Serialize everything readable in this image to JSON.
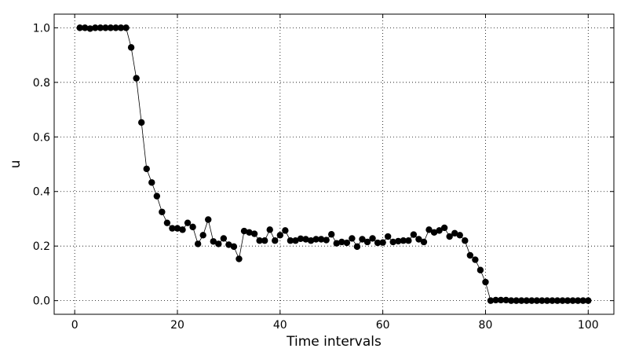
{
  "chart_data": {
    "type": "line",
    "title": "",
    "xlabel": "Time intervals",
    "ylabel": "u",
    "xlim": [
      -4,
      105
    ],
    "ylim": [
      -0.05,
      1.05
    ],
    "xticks": [
      0,
      20,
      40,
      60,
      80,
      100
    ],
    "yticks": [
      0.0,
      0.2,
      0.4,
      0.6,
      0.8,
      1.0
    ],
    "xtick_labels": [
      "0",
      "20",
      "40",
      "60",
      "80",
      "100"
    ],
    "ytick_labels": [
      "0.0",
      "0.2",
      "0.4",
      "0.6",
      "0.8",
      "1.0"
    ],
    "grid": true,
    "legend": "none",
    "series": [
      {
        "color": "#000000",
        "marker": "circle",
        "x": [
          1,
          2,
          3,
          4,
          5,
          6,
          7,
          8,
          9,
          10,
          11,
          12,
          13,
          14,
          15,
          16,
          17,
          18,
          19,
          20,
          21,
          22,
          23,
          24,
          25,
          26,
          27,
          28,
          29,
          30,
          31,
          32,
          33,
          34,
          35,
          36,
          37,
          38,
          39,
          40,
          41,
          42,
          43,
          44,
          45,
          46,
          47,
          48,
          49,
          50,
          51,
          52,
          53,
          54,
          55,
          56,
          57,
          58,
          59,
          60,
          61,
          62,
          63,
          64,
          65,
          66,
          67,
          68,
          69,
          70,
          71,
          72,
          73,
          74,
          75,
          76,
          77,
          78,
          79,
          80,
          81,
          82,
          83,
          84,
          85,
          86,
          87,
          88,
          89,
          90,
          91,
          92,
          93,
          94,
          95,
          96,
          97,
          98,
          99,
          100
        ],
        "y": [
          1.0,
          1.0,
          0.997,
          1.0,
          1.0,
          1.0,
          1.0,
          1.0,
          1.0,
          1.0,
          0.928,
          0.815,
          0.653,
          0.483,
          0.433,
          0.383,
          0.325,
          0.285,
          0.265,
          0.265,
          0.26,
          0.285,
          0.27,
          0.208,
          0.24,
          0.297,
          0.217,
          0.208,
          0.228,
          0.205,
          0.198,
          0.153,
          0.255,
          0.25,
          0.245,
          0.22,
          0.22,
          0.26,
          0.22,
          0.24,
          0.257,
          0.22,
          0.22,
          0.227,
          0.225,
          0.22,
          0.225,
          0.225,
          0.222,
          0.243,
          0.21,
          0.215,
          0.212,
          0.228,
          0.198,
          0.225,
          0.215,
          0.228,
          0.212,
          0.213,
          0.235,
          0.215,
          0.218,
          0.22,
          0.22,
          0.242,
          0.225,
          0.215,
          0.26,
          0.25,
          0.257,
          0.267,
          0.235,
          0.247,
          0.24,
          0.22,
          0.166,
          0.15,
          0.112,
          0.068,
          0.0,
          0.002,
          0.002,
          0.002,
          0.0,
          0.0,
          0.0,
          0.0,
          0.0,
          0.0,
          0.0,
          0.0,
          0.0,
          0.0,
          0.0,
          0.0,
          0.0,
          0.0,
          0.0,
          0.0
        ]
      }
    ]
  }
}
